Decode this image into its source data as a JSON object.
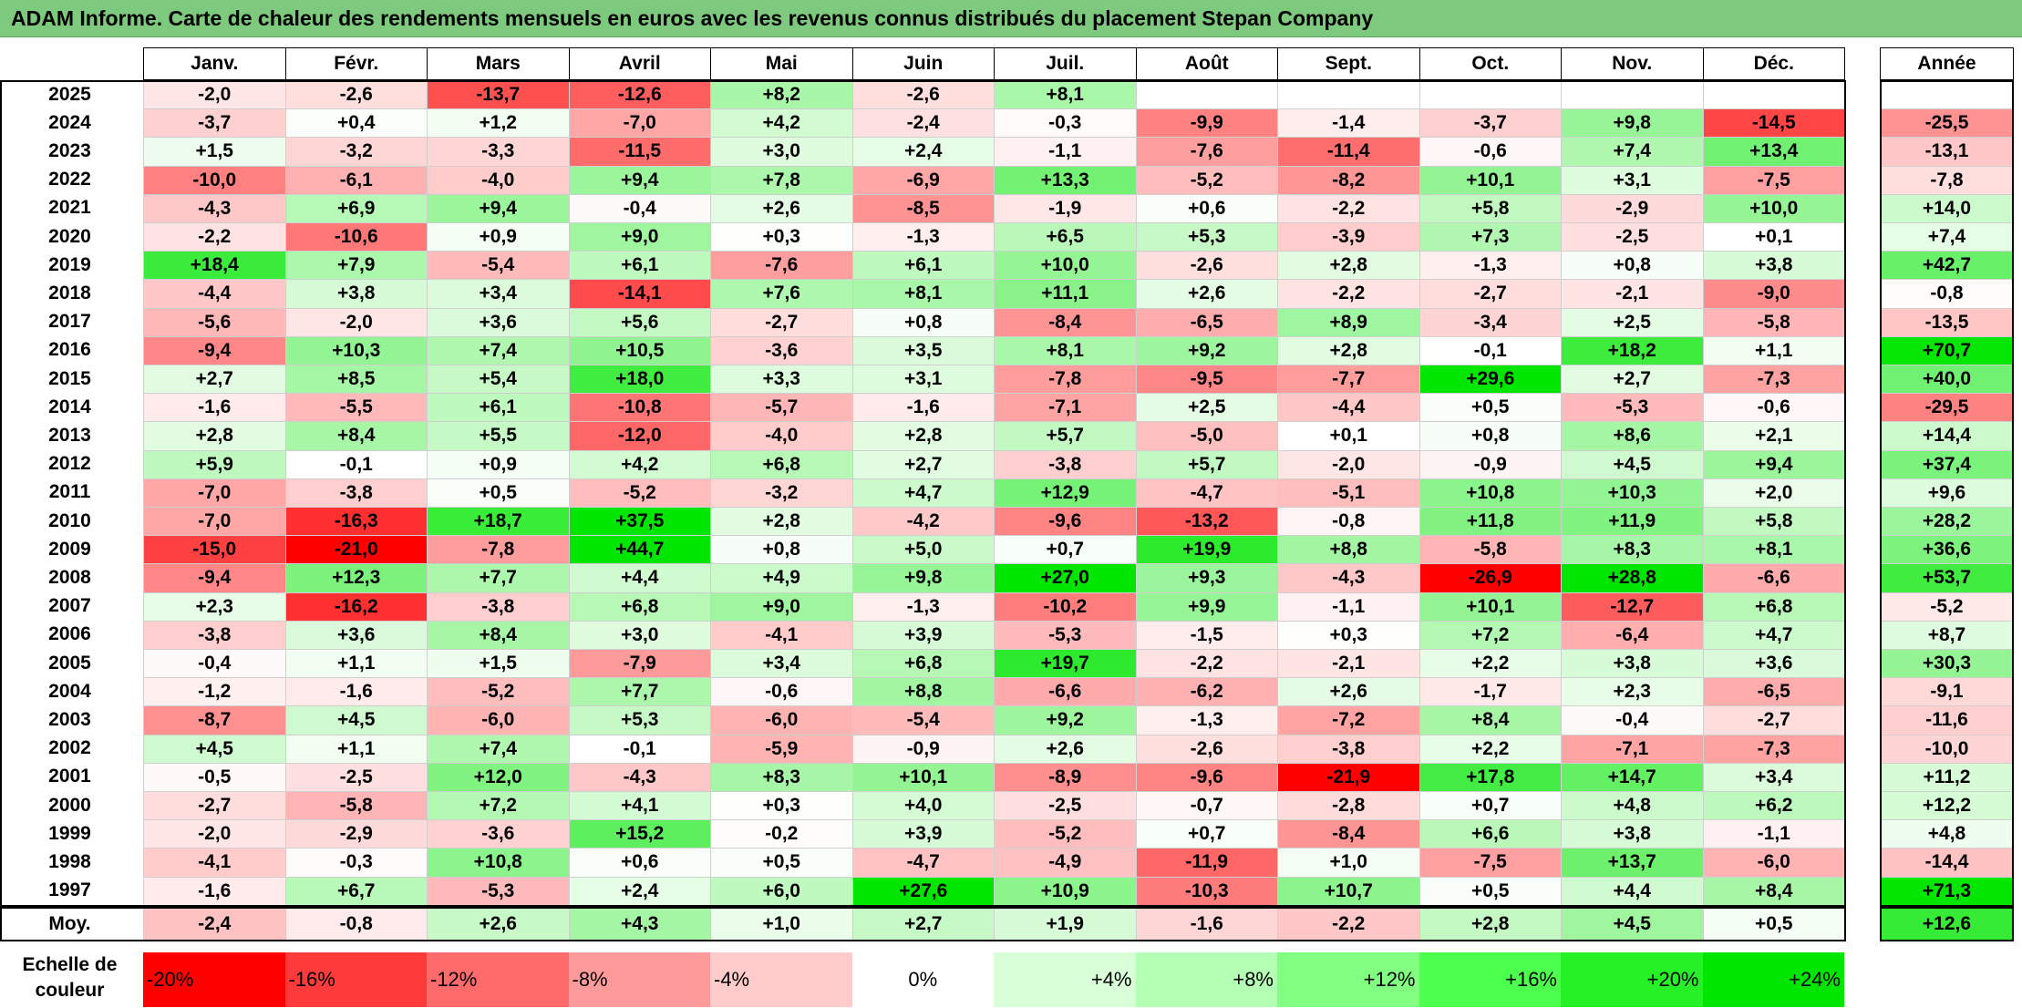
{
  "title": "ADAM Informe. Carte de chaleur des rendements mensuels en euros avec les revenus connus distribués du placement Stepan Company",
  "chart_data": {
    "type": "heatmap",
    "title": "ADAM Informe. Carte de chaleur des rendements mensuels en euros avec les revenus connus distribués du placement Stepan Company",
    "months": [
      "Janv.",
      "Févr.",
      "Mars",
      "Avril",
      "Mai",
      "Juin",
      "Juil.",
      "Août",
      "Sept.",
      "Oct.",
      "Nov.",
      "Déc."
    ],
    "year_header": "Année",
    "rows": [
      {
        "year": "2025",
        "values": [
          "-2,0",
          "-2,6",
          "-13,7",
          "-12,6",
          "+8,2",
          "-2,6",
          "+8,1",
          "",
          "",
          "",
          "",
          ""
        ],
        "annual": ""
      },
      {
        "year": "2024",
        "values": [
          "-3,7",
          "+0,4",
          "+1,2",
          "-7,0",
          "+4,2",
          "-2,4",
          "-0,3",
          "-9,9",
          "-1,4",
          "-3,7",
          "+9,8",
          "-14,5"
        ],
        "annual": "-25,5"
      },
      {
        "year": "2023",
        "values": [
          "+1,5",
          "-3,2",
          "-3,3",
          "-11,5",
          "+3,0",
          "+2,4",
          "-1,1",
          "-7,6",
          "-11,4",
          "-0,6",
          "+7,4",
          "+13,4"
        ],
        "annual": "-13,1"
      },
      {
        "year": "2022",
        "values": [
          "-10,0",
          "-6,1",
          "-4,0",
          "+9,4",
          "+7,8",
          "-6,9",
          "+13,3",
          "-5,2",
          "-8,2",
          "+10,1",
          "+3,1",
          "-7,5"
        ],
        "annual": "-7,8"
      },
      {
        "year": "2021",
        "values": [
          "-4,3",
          "+6,9",
          "+9,4",
          "-0,4",
          "+2,6",
          "-8,5",
          "-1,9",
          "+0,6",
          "-2,2",
          "+5,8",
          "-2,9",
          "+10,0"
        ],
        "annual": "+14,0"
      },
      {
        "year": "2020",
        "values": [
          "-2,2",
          "-10,6",
          "+0,9",
          "+9,0",
          "+0,3",
          "-1,3",
          "+6,5",
          "+5,3",
          "-3,9",
          "+7,3",
          "-2,5",
          "+0,1"
        ],
        "annual": "+7,4"
      },
      {
        "year": "2019",
        "values": [
          "+18,4",
          "+7,9",
          "-5,4",
          "+6,1",
          "-7,6",
          "+6,1",
          "+10,0",
          "-2,6",
          "+2,8",
          "-1,3",
          "+0,8",
          "+3,8"
        ],
        "annual": "+42,7"
      },
      {
        "year": "2018",
        "values": [
          "-4,4",
          "+3,8",
          "+3,4",
          "-14,1",
          "+7,6",
          "+8,1",
          "+11,1",
          "+2,6",
          "-2,2",
          "-2,7",
          "-2,1",
          "-9,0"
        ],
        "annual": "-0,8"
      },
      {
        "year": "2017",
        "values": [
          "-5,6",
          "-2,0",
          "+3,6",
          "+5,6",
          "-2,7",
          "+0,8",
          "-8,4",
          "-6,5",
          "+8,9",
          "-3,4",
          "+2,5",
          "-5,8"
        ],
        "annual": "-13,5"
      },
      {
        "year": "2016",
        "values": [
          "-9,4",
          "+10,3",
          "+7,4",
          "+10,5",
          "-3,6",
          "+3,5",
          "+8,1",
          "+9,2",
          "+2,8",
          "-0,1",
          "+18,2",
          "+1,1"
        ],
        "annual": "+70,7"
      },
      {
        "year": "2015",
        "values": [
          "+2,7",
          "+8,5",
          "+5,4",
          "+18,0",
          "+3,3",
          "+3,1",
          "-7,8",
          "-9,5",
          "-7,7",
          "+29,6",
          "+2,7",
          "-7,3"
        ],
        "annual": "+40,0"
      },
      {
        "year": "2014",
        "values": [
          "-1,6",
          "-5,5",
          "+6,1",
          "-10,8",
          "-5,7",
          "-1,6",
          "-7,1",
          "+2,5",
          "-4,4",
          "+0,5",
          "-5,3",
          "-0,6"
        ],
        "annual": "-29,5"
      },
      {
        "year": "2013",
        "values": [
          "+2,8",
          "+8,4",
          "+5,5",
          "-12,0",
          "-4,0",
          "+2,8",
          "+5,7",
          "-5,0",
          "+0,1",
          "+0,8",
          "+8,6",
          "+2,1"
        ],
        "annual": "+14,4"
      },
      {
        "year": "2012",
        "values": [
          "+5,9",
          "-0,1",
          "+0,9",
          "+4,2",
          "+6,8",
          "+2,7",
          "-3,8",
          "+5,7",
          "-2,0",
          "-0,9",
          "+4,5",
          "+9,4"
        ],
        "annual": "+37,4"
      },
      {
        "year": "2011",
        "values": [
          "-7,0",
          "-3,8",
          "+0,5",
          "-5,2",
          "-3,2",
          "+4,7",
          "+12,9",
          "-4,7",
          "-5,1",
          "+10,8",
          "+10,3",
          "+2,0"
        ],
        "annual": "+9,6"
      },
      {
        "year": "2010",
        "values": [
          "-7,0",
          "-16,3",
          "+18,7",
          "+37,5",
          "+2,8",
          "-4,2",
          "-9,6",
          "-13,2",
          "-0,8",
          "+11,8",
          "+11,9",
          "+5,8"
        ],
        "annual": "+28,2"
      },
      {
        "year": "2009",
        "values": [
          "-15,0",
          "-21,0",
          "-7,8",
          "+44,7",
          "+0,8",
          "+5,0",
          "+0,7",
          "+19,9",
          "+8,8",
          "-5,8",
          "+8,3",
          "+8,1"
        ],
        "annual": "+36,6"
      },
      {
        "year": "2008",
        "values": [
          "-9,4",
          "+12,3",
          "+7,7",
          "+4,4",
          "+4,9",
          "+9,8",
          "+27,0",
          "+9,3",
          "-4,3",
          "-26,9",
          "+28,8",
          "-6,6"
        ],
        "annual": "+53,7"
      },
      {
        "year": "2007",
        "values": [
          "+2,3",
          "-16,2",
          "-3,8",
          "+6,8",
          "+9,0",
          "-1,3",
          "-10,2",
          "+9,9",
          "-1,1",
          "+10,1",
          "-12,7",
          "+6,8"
        ],
        "annual": "-5,2"
      },
      {
        "year": "2006",
        "values": [
          "-3,8",
          "+3,6",
          "+8,4",
          "+3,0",
          "-4,1",
          "+3,9",
          "-5,3",
          "-1,5",
          "+0,3",
          "+7,2",
          "-6,4",
          "+4,7"
        ],
        "annual": "+8,7"
      },
      {
        "year": "2005",
        "values": [
          "-0,4",
          "+1,1",
          "+1,5",
          "-7,9",
          "+3,4",
          "+6,8",
          "+19,7",
          "-2,2",
          "-2,1",
          "+2,2",
          "+3,8",
          "+3,6"
        ],
        "annual": "+30,3"
      },
      {
        "year": "2004",
        "values": [
          "-1,2",
          "-1,6",
          "-5,2",
          "+7,7",
          "-0,6",
          "+8,8",
          "-6,6",
          "-6,2",
          "+2,6",
          "-1,7",
          "+2,3",
          "-6,5"
        ],
        "annual": "-9,1"
      },
      {
        "year": "2003",
        "values": [
          "-8,7",
          "+4,5",
          "-6,0",
          "+5,3",
          "-6,0",
          "-5,4",
          "+9,2",
          "-1,3",
          "-7,2",
          "+8,4",
          "-0,4",
          "-2,7"
        ],
        "annual": "-11,6"
      },
      {
        "year": "2002",
        "values": [
          "+4,5",
          "+1,1",
          "+7,4",
          "-0,1",
          "-5,9",
          "-0,9",
          "+2,6",
          "-2,6",
          "-3,8",
          "+2,2",
          "-7,1",
          "-7,3"
        ],
        "annual": "-10,0"
      },
      {
        "year": "2001",
        "values": [
          "-0,5",
          "-2,5",
          "+12,0",
          "-4,3",
          "+8,3",
          "+10,1",
          "-8,9",
          "-9,6",
          "-21,9",
          "+17,8",
          "+14,7",
          "+3,4"
        ],
        "annual": "+11,2"
      },
      {
        "year": "2000",
        "values": [
          "-2,7",
          "-5,8",
          "+7,2",
          "+4,1",
          "+0,3",
          "+4,0",
          "-2,5",
          "-0,7",
          "-2,8",
          "+0,7",
          "+4,8",
          "+6,2"
        ],
        "annual": "+12,2"
      },
      {
        "year": "1999",
        "values": [
          "-2,0",
          "-2,9",
          "-3,6",
          "+15,2",
          "-0,2",
          "+3,9",
          "-5,2",
          "+0,7",
          "-8,4",
          "+6,6",
          "+3,8",
          "-1,1"
        ],
        "annual": "+4,8"
      },
      {
        "year": "1998",
        "values": [
          "-4,1",
          "-0,3",
          "+10,8",
          "+0,6",
          "+0,5",
          "-4,7",
          "-4,9",
          "-11,9",
          "+1,0",
          "-7,5",
          "+13,7",
          "-6,0"
        ],
        "annual": "-14,4"
      },
      {
        "year": "1997",
        "values": [
          "-1,6",
          "+6,7",
          "-5,3",
          "+2,4",
          "+6,0",
          "+27,6",
          "+10,9",
          "-10,3",
          "+10,7",
          "+0,5",
          "+4,4",
          "+8,4"
        ],
        "annual": "+71,3"
      }
    ],
    "average": {
      "label": "Moy.",
      "values": [
        "-2,4",
        "-0,8",
        "+2,6",
        "+4,3",
        "+1,0",
        "+2,7",
        "+1,9",
        "-1,6",
        "-2,2",
        "+2,8",
        "+4,5",
        "+0,5"
      ],
      "annual": "+12,6"
    },
    "scale": {
      "label": [
        "Echelle de",
        "couleur"
      ],
      "steps": [
        "-20%",
        "-16%",
        "-12%",
        "-8%",
        "-4%",
        "0%",
        "+4%",
        "+8%",
        "+12%",
        "+16%",
        "+20%",
        "+24%"
      ],
      "colors": [
        "#ff0000",
        "#ff3a3a",
        "#ff6b6b",
        "#ff9a9a",
        "#ffcbcb",
        "#ffffff",
        "#d9ffd9",
        "#b3ffb3",
        "#80ff80",
        "#4dff4d",
        "#26f026",
        "#00e600"
      ]
    }
  }
}
